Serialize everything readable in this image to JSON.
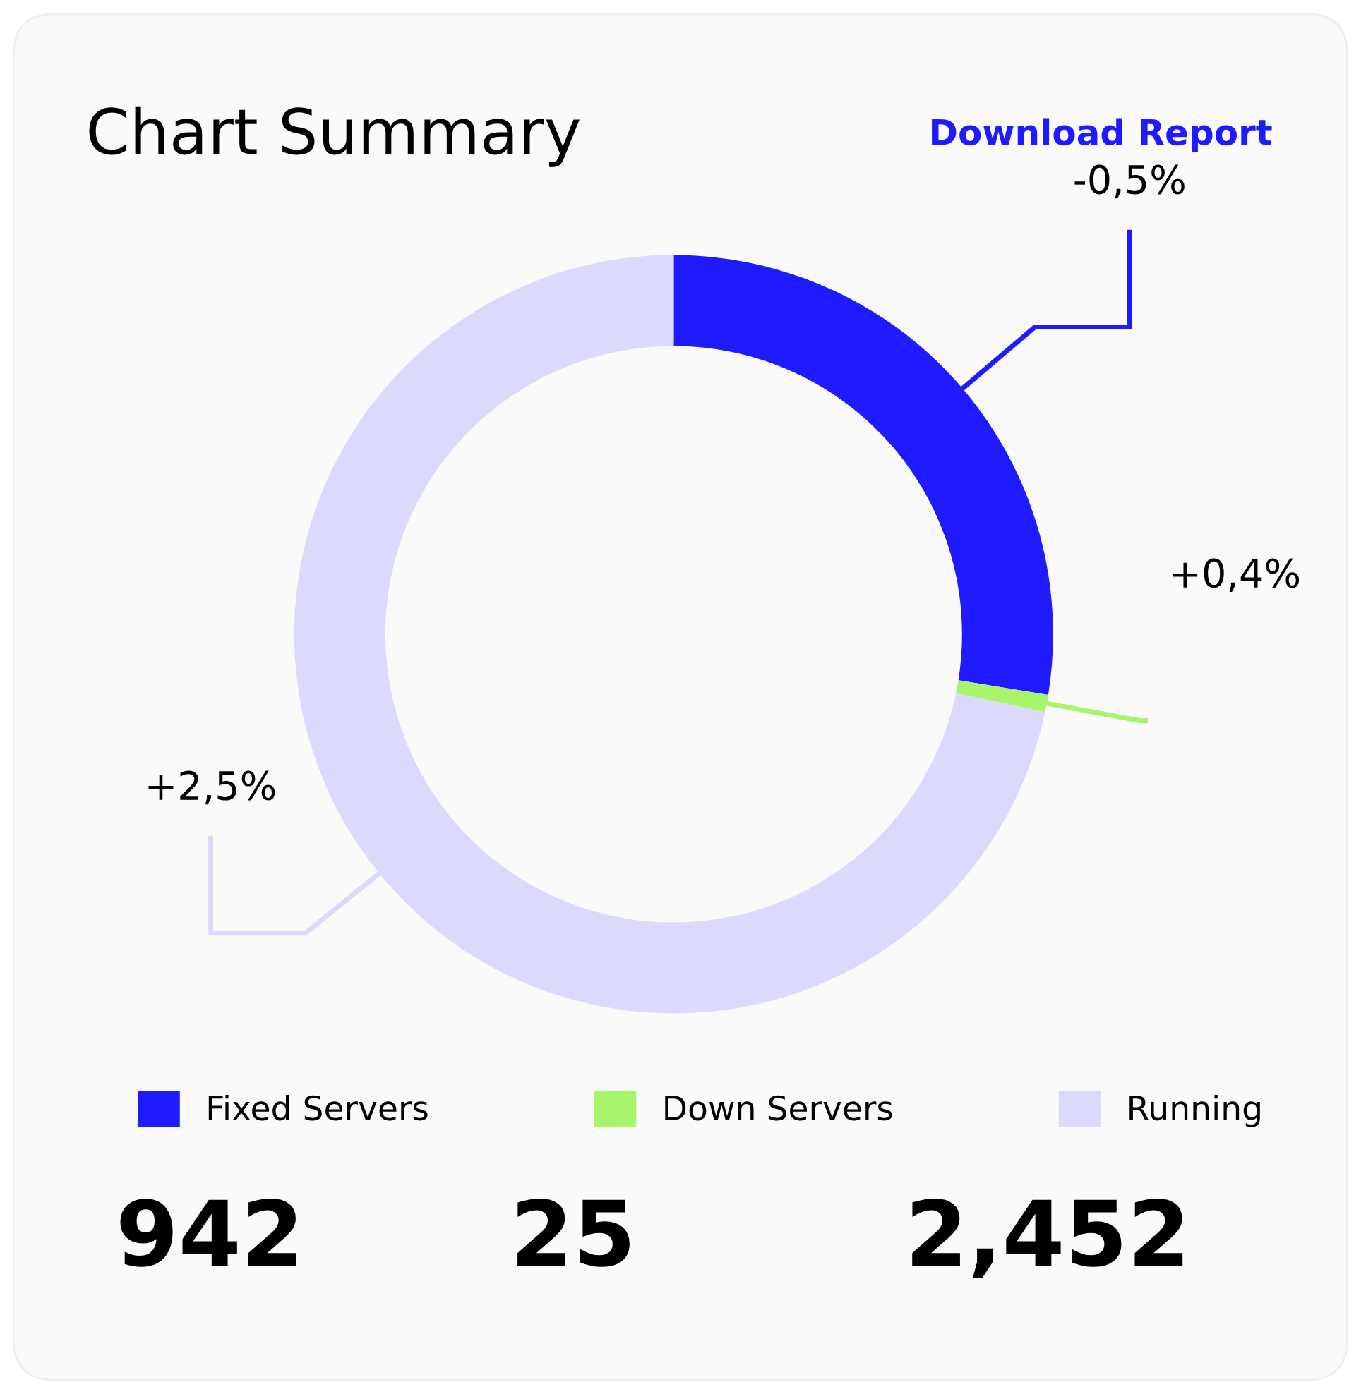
{
  "chart_data": {
    "type": "donut",
    "title": "Chart Summary",
    "categories": [
      "Fixed Servers",
      "Down Servers",
      "Running"
    ],
    "values": [
      942,
      25,
      2452
    ],
    "value_labels": [
      "942",
      "25",
      "2,452"
    ],
    "colors": [
      "#1f1aff",
      "#a8f56c",
      "#dcdafc"
    ],
    "annotations": [
      "-0,5%",
      "+0,4%",
      "+2,5%",
      "Download Report"
    ],
    "legend": "bottom"
  }
}
